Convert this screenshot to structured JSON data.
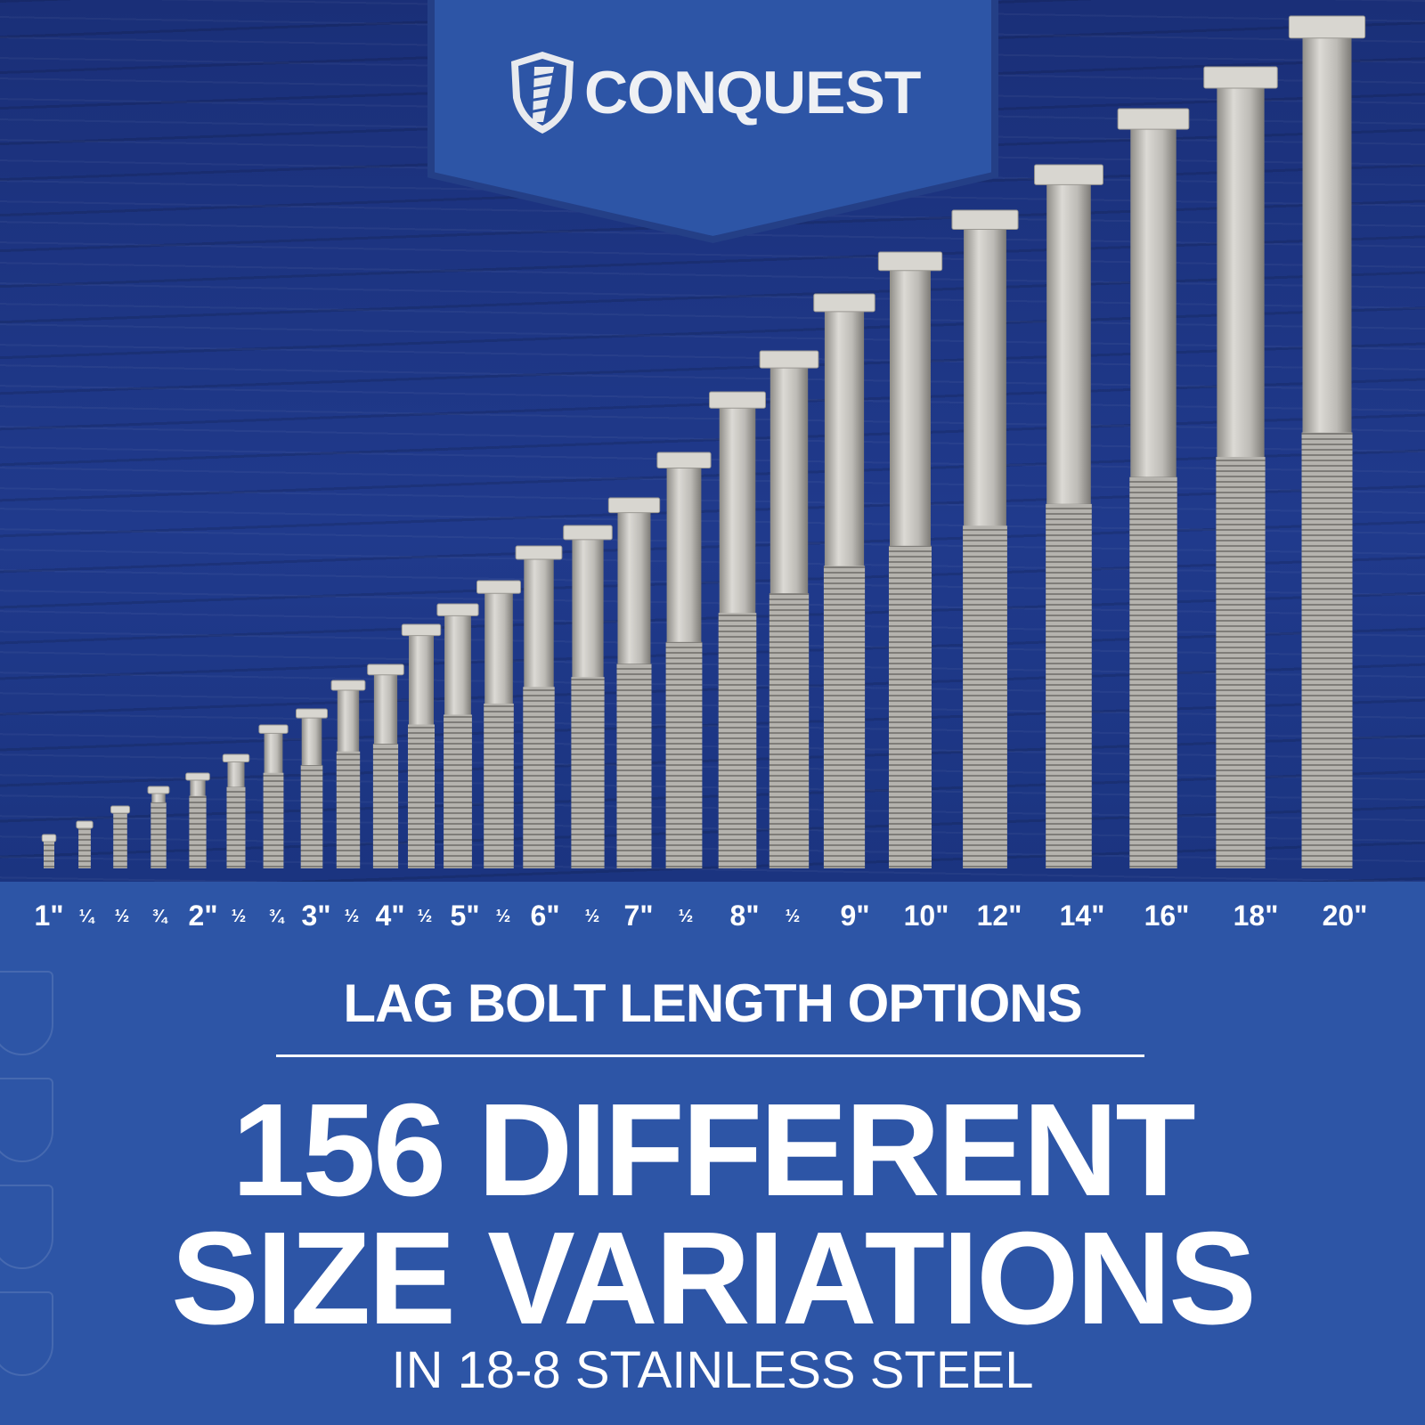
{
  "brand": {
    "name": "CONQUEST",
    "logo_icon": "shield-screw-icon"
  },
  "colors": {
    "blue": "#2d55a6",
    "wood": "#1f3888",
    "steel": "#c9c7c2"
  },
  "bolts": [
    {
      "label": "1\"",
      "length_in": 1,
      "major": true
    },
    {
      "label": "¼",
      "length_in": 1.25,
      "major": false
    },
    {
      "label": "½",
      "length_in": 1.5,
      "major": false
    },
    {
      "label": "¾",
      "length_in": 1.75,
      "major": false
    },
    {
      "label": "2\"",
      "length_in": 2,
      "major": true
    },
    {
      "label": "½",
      "length_in": 2.5,
      "major": false
    },
    {
      "label": "¾",
      "length_in": 2.75,
      "major": false
    },
    {
      "label": "3\"",
      "length_in": 3,
      "major": true
    },
    {
      "label": "½",
      "length_in": 3.5,
      "major": false
    },
    {
      "label": "4\"",
      "length_in": 4,
      "major": true
    },
    {
      "label": "½",
      "length_in": 4.5,
      "major": false
    },
    {
      "label": "5\"",
      "length_in": 5,
      "major": true
    },
    {
      "label": "½",
      "length_in": 5.5,
      "major": false
    },
    {
      "label": "6\"",
      "length_in": 6,
      "major": true
    },
    {
      "label": "½",
      "length_in": 6.5,
      "major": false
    },
    {
      "label": "7\"",
      "length_in": 7,
      "major": true
    },
    {
      "label": "½",
      "length_in": 7.5,
      "major": false
    },
    {
      "label": "8\"",
      "length_in": 8,
      "major": true
    },
    {
      "label": "½",
      "length_in": 8.5,
      "major": false
    },
    {
      "label": "9\"",
      "length_in": 9,
      "major": true
    },
    {
      "label": "10\"",
      "length_in": 10,
      "major": true
    },
    {
      "label": "12\"",
      "length_in": 12,
      "major": true
    },
    {
      "label": "14\"",
      "length_in": 14,
      "major": true
    },
    {
      "label": "16\"",
      "length_in": 16,
      "major": true
    },
    {
      "label": "18\"",
      "length_in": 18,
      "major": true
    },
    {
      "label": "20\"",
      "length_in": 20,
      "major": true
    }
  ],
  "text": {
    "subtitle": "LAG BOLT LENGTH OPTIONS",
    "headline_1": "156 DIFFERENT",
    "headline_2": "SIZE VARIATIONS",
    "tagline": "IN 18-8 STAINLESS STEEL"
  }
}
